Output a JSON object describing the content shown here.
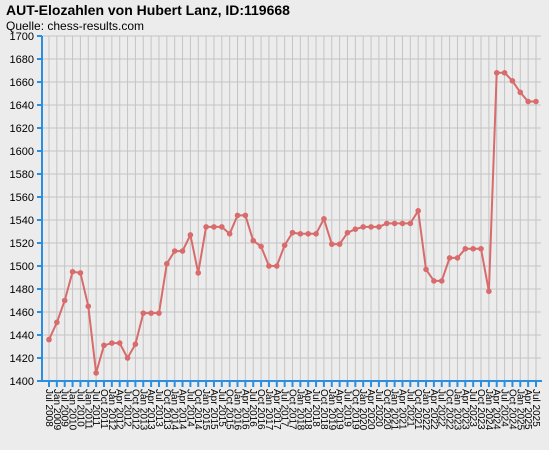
{
  "chart_data": {
    "type": "line",
    "title": "AUT-Elozahlen von Hubert Lanz, ID:119668",
    "subtitle": "Quelle: chess-results.com",
    "ylim": [
      1400,
      1700
    ],
    "yticks": [
      1400,
      1420,
      1440,
      1460,
      1480,
      1500,
      1520,
      1540,
      1560,
      1580,
      1600,
      1620,
      1640,
      1660,
      1680,
      1700
    ],
    "grid": true,
    "x": [
      "Jul 2008",
      "Jan 2009",
      "Jul 2009",
      "Jan 2010",
      "Jul 2010",
      "Jan 2011",
      "Jul 2011",
      "Oct 2011",
      "Jan 2012",
      "Apr 2012",
      "Jul 2012",
      "Oct 2012",
      "Jan 2013",
      "Apr 2013",
      "Jul 2013",
      "Oct 2013",
      "Jan 2014",
      "Apr 2014",
      "Jul 2014",
      "Oct 2014",
      "Jan 2015",
      "Apr 2015",
      "Jul 2015",
      "Oct 2015",
      "Jan 2016",
      "Apr 2016",
      "Jul 2016",
      "Oct 2016",
      "Jan 2017",
      "Apr 2017",
      "Jul 2017",
      "Oct 2017",
      "Jan 2018",
      "Apr 2018",
      "Jul 2018",
      "Oct 2018",
      "Jan 2019",
      "Apr 2019",
      "Jul 2019",
      "Oct 2019",
      "Jan 2020",
      "Apr 2020",
      "Jul 2020",
      "Oct 2020",
      "Jan 2021",
      "Apr 2021",
      "Jul 2021",
      "Oct 2021",
      "Jan 2022",
      "Apr 2022",
      "Jul 2022",
      "Oct 2022",
      "Jan 2023",
      "Apr 2023",
      "Jul 2023",
      "Oct 2023",
      "Jan 2024",
      "Apr 2024",
      "Jul 2024",
      "Oct 2024",
      "Jan 2025",
      "Apr 2025",
      "Jul 2025"
    ],
    "values": [
      1436,
      1451,
      1470,
      1495,
      1494,
      1465,
      1407,
      1431,
      1433,
      1433,
      1420,
      1432,
      1459,
      1459,
      1459,
      1502,
      1513,
      1513,
      1527,
      1494,
      1534,
      1534,
      1534,
      1528,
      1544,
      1544,
      1522,
      1517,
      1500,
      1500,
      1518,
      1529,
      1528,
      1528,
      1528,
      1541,
      1519,
      1519,
      1529,
      1532,
      1534,
      1534,
      1534,
      1537,
      1537,
      1537,
      1537,
      1548,
      1497,
      1487,
      1487,
      1507,
      1507,
      1515,
      1515,
      1515,
      1478,
      1668,
      1668,
      1661,
      1651,
      1643,
      1643
    ],
    "xtick_labels": [
      "Jul 2008",
      "Jan 2009",
      "Jul 2009",
      "Jan 2010",
      "Jul 2010",
      "Jan 2011",
      "Jul 2011",
      "Oct 2011",
      "Jan 2012",
      "Apr 2012",
      "Jul 2012",
      "Oct 2012",
      "Jan 2013",
      "Apr 2013",
      "Jul 2013",
      "Oct 2013",
      "Jan 2014",
      "Apr 2014",
      "Jul 2014",
      "Oct 2014",
      "Jan 2015",
      "Apr 2015",
      "Jul 2015",
      "Oct 2015",
      "Jan 2016",
      "Apr 2016",
      "Jul 2016",
      "Oct 2016",
      "Jan 2017",
      "Apr 2017",
      "Jul 2017",
      "Oct 2017",
      "Jan 2018",
      "Apr 2018",
      "Jul 2018",
      "Oct 2018",
      "Jan 2019",
      "Apr 2019",
      "Jul 2019",
      "Oct 2019",
      "Jan 2020",
      "Apr 2020",
      "Jul 2020",
      "Oct 2020",
      "Jan 2021",
      "Apr 2021",
      "Jul 2021",
      "Oct 2021",
      "Jan 2022",
      "Apr 2022",
      "Jul 2022",
      "Oct 2022",
      "Jan 2023",
      "Apr 2023",
      "Jul 2023",
      "Oct 2023",
      "Jan 2024",
      "Apr 2024",
      "Jul 2024",
      "Oct 2024",
      "Jan 2025",
      "Apr 2025",
      "Jul 2025"
    ],
    "colors": {
      "line": "#d86b6b",
      "axis": "#2a8fe0",
      "grid": "#c4c4c4",
      "background": "#ececec"
    }
  }
}
